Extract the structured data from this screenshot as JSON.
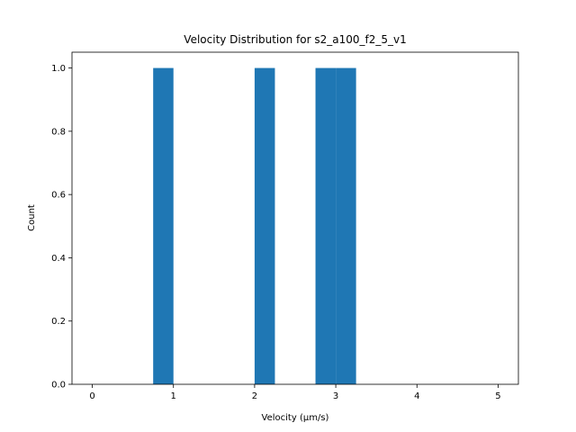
{
  "chart_data": {
    "type": "bar",
    "title": "Velocity Distribution for s2_a100_f2_5_v1",
    "xlabel": "Velocity (μm/s)",
    "ylabel": "Count",
    "xlim": [
      -0.25,
      5.25
    ],
    "ylim": [
      0,
      1.05
    ],
    "bin_width": 0.25,
    "bins": [
      {
        "start": 0.75,
        "end": 1.0,
        "count": 1
      },
      {
        "start": 2.0,
        "end": 2.25,
        "count": 1
      },
      {
        "start": 2.75,
        "end": 3.0,
        "count": 1
      },
      {
        "start": 3.0,
        "end": 3.25,
        "count": 1
      }
    ],
    "xticks": [
      "0",
      "1",
      "2",
      "3",
      "4",
      "5"
    ],
    "yticks": [
      "0.0",
      "0.2",
      "0.4",
      "0.6",
      "0.8",
      "1.0"
    ],
    "bar_color": "#1f77b4",
    "grid": false,
    "legend": "none"
  }
}
